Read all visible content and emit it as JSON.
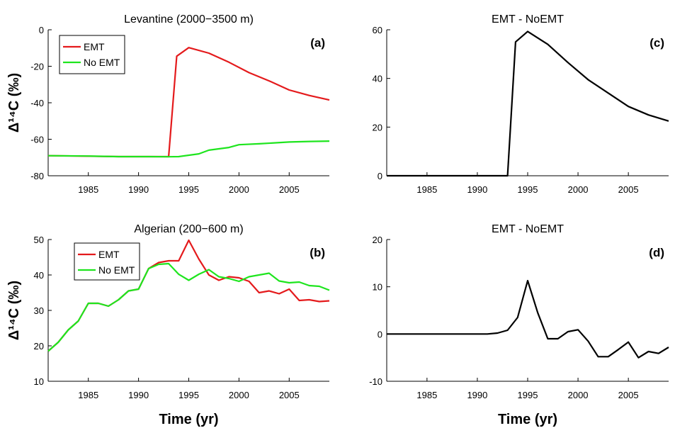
{
  "chart_data": [
    {
      "panel": "(a)",
      "type": "line",
      "title": "Levantine (2000−3500 m)",
      "ylabel": "Δ¹⁴C (‰)",
      "xlabel": "",
      "xlim": [
        1981,
        2009
      ],
      "ylim": [
        -80,
        0
      ],
      "xticks": [
        1985,
        1990,
        1995,
        2000,
        2005
      ],
      "yticks": [
        -80,
        -60,
        -40,
        -20,
        0
      ],
      "legend": "top-left",
      "series": [
        {
          "name": "EMT",
          "color": "#e41a1c",
          "x": [
            1981,
            1984,
            1988,
            1991,
            1993,
            1993.8,
            1995,
            1997,
            1999,
            2001,
            2003,
            2005,
            2007,
            2009
          ],
          "y": [
            -69,
            -69.2,
            -69.5,
            -69.5,
            -69.5,
            -14.5,
            -9.8,
            -12.8,
            -17.8,
            -23.5,
            -28,
            -33,
            -36,
            -38.5
          ]
        },
        {
          "name": "No EMT",
          "color": "#1ee51e",
          "x": [
            1981,
            1985,
            1988,
            1991,
            1993,
            1994,
            1996,
            1997,
            1999,
            2000,
            2002,
            2005,
            2007,
            2009
          ],
          "y": [
            -69,
            -69.2,
            -69.5,
            -69.5,
            -69.6,
            -69.5,
            -68,
            -66,
            -64.5,
            -63,
            -62.5,
            -61.5,
            -61.2,
            -61
          ]
        }
      ]
    },
    {
      "panel": "(b)",
      "type": "line",
      "title": "Algerian (200−600 m)",
      "ylabel": "Δ¹⁴C (‰)",
      "xlabel": "Time (yr)",
      "xlim": [
        1981,
        2009
      ],
      "ylim": [
        10,
        50
      ],
      "xticks": [
        1985,
        1990,
        1995,
        2000,
        2005
      ],
      "yticks": [
        10,
        20,
        30,
        40,
        50
      ],
      "legend": "top-left",
      "series": [
        {
          "name": "EMT",
          "color": "#e41a1c",
          "x": [
            1981,
            1982,
            1983,
            1984,
            1985,
            1986,
            1987,
            1988,
            1989,
            1990,
            1991,
            1992,
            1993,
            1994,
            1995,
            1996,
            1997,
            1998,
            1999,
            2000,
            2001,
            2002,
            2003,
            2004,
            2005,
            2006,
            2007,
            2008,
            2009
          ],
          "y": [
            18.5,
            21,
            24.5,
            27,
            32,
            32,
            31.2,
            33,
            35.5,
            36,
            41.8,
            43.5,
            44,
            44,
            49.8,
            44.5,
            40,
            38.5,
            39.5,
            39.2,
            38.2,
            35,
            35.5,
            34.7,
            36,
            32.8,
            33,
            32.5,
            32.7
          ]
        },
        {
          "name": "No EMT",
          "color": "#1ee51e",
          "x": [
            1981,
            1982,
            1983,
            1984,
            1985,
            1986,
            1987,
            1988,
            1989,
            1990,
            1991,
            1992,
            1993,
            1994,
            1995,
            1996,
            1997,
            1998,
            1999,
            2000,
            2001,
            2002,
            2003,
            2004,
            2005,
            2006,
            2007,
            2008,
            2009
          ],
          "y": [
            18.5,
            21,
            24.5,
            27,
            32,
            32,
            31.2,
            33,
            35.5,
            36,
            41.8,
            43,
            43.2,
            40.2,
            38.5,
            40.2,
            41.5,
            39.5,
            39,
            38.2,
            39.5,
            40,
            40.5,
            38.3,
            37.8,
            38,
            37,
            36.8,
            35.7
          ]
        }
      ]
    },
    {
      "panel": "(c)",
      "type": "line",
      "title": "EMT - NoEMT",
      "ylabel": "",
      "xlabel": "",
      "xlim": [
        1981,
        2009
      ],
      "ylim": [
        0,
        60
      ],
      "xticks": [
        1985,
        1990,
        1995,
        2000,
        2005
      ],
      "yticks": [
        0,
        20,
        40,
        60
      ],
      "series": [
        {
          "color": "#000000",
          "x": [
            1981,
            1985,
            1990,
            1993,
            1993.8,
            1995,
            1997,
            1999,
            2001,
            2003,
            2005,
            2007,
            2009
          ],
          "y": [
            0,
            0,
            0,
            0,
            55,
            59.3,
            54,
            46.5,
            39.5,
            34,
            28.5,
            25,
            22.5
          ]
        }
      ]
    },
    {
      "panel": "(d)",
      "type": "line",
      "title": "EMT - NoEMT",
      "ylabel": "",
      "xlabel": "Time (yr)",
      "xlim": [
        1981,
        2009
      ],
      "ylim": [
        -10,
        20
      ],
      "xticks": [
        1985,
        1990,
        1995,
        2000,
        2005
      ],
      "yticks": [
        -10,
        0,
        10,
        20
      ],
      "series": [
        {
          "color": "#000000",
          "x": [
            1981,
            1982,
            1983,
            1984,
            1985,
            1986,
            1987,
            1988,
            1989,
            1990,
            1991,
            1992,
            1993,
            1994,
            1995,
            1996,
            1997,
            1998,
            1999,
            2000,
            2001,
            2002,
            2003,
            2004,
            2005,
            2006,
            2007,
            2008,
            2009
          ],
          "y": [
            0,
            0,
            0,
            0,
            0,
            0,
            0,
            0,
            0,
            0,
            0,
            0.2,
            0.8,
            3.5,
            11.3,
            4.5,
            -1,
            -1,
            0.5,
            0.9,
            -1.5,
            -4.8,
            -4.8,
            -3.3,
            -1.7,
            -5,
            -3.7,
            -4.1,
            -2.8
          ]
        }
      ]
    }
  ]
}
